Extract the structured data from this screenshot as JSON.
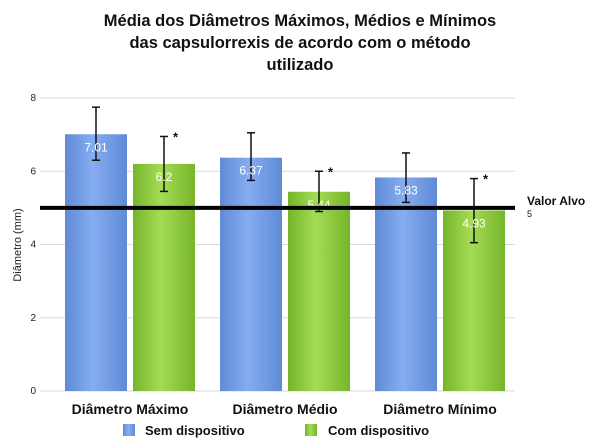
{
  "chart_data": {
    "type": "bar",
    "title_lines": [
      "Média dos Diâmetros Máximos, Médios e Mínimos",
      "das capsulorrexis de acordo com o método",
      "utilizado"
    ],
    "ylabel": "Diâmetro (mm)",
    "xlabel": "",
    "ylim": [
      0,
      8
    ],
    "yticks": [
      0,
      2,
      4,
      6,
      8
    ],
    "grid": true,
    "categories": [
      "Diâmetro Máximo",
      "Diâmetro Médio",
      "Diâmetro Mínimo"
    ],
    "series": [
      {
        "name": "Sem dispositivo",
        "color": "#6f9ae3",
        "values": [
          7.01,
          6.37,
          5.83
        ],
        "labels": [
          "7.01",
          "6.37",
          "5.83"
        ],
        "error_low": [
          6.3,
          5.75,
          5.15
        ],
        "error_high": [
          7.75,
          7.05,
          6.5
        ],
        "significance": [
          "",
          "",
          ""
        ]
      },
      {
        "name": "Com dispositivo",
        "color": "#8ccb3c",
        "values": [
          6.2,
          5.44,
          4.93
        ],
        "labels": [
          "6.2",
          "5.44",
          "4.93"
        ],
        "error_low": [
          5.45,
          4.9,
          4.05
        ],
        "error_high": [
          6.95,
          6.0,
          5.8
        ],
        "significance": [
          "*",
          "*",
          "*"
        ]
      }
    ],
    "reference_line": {
      "value": 5,
      "label": "Valor Alvo",
      "value_label": "5"
    },
    "legend": {
      "placement": "bottom"
    }
  }
}
